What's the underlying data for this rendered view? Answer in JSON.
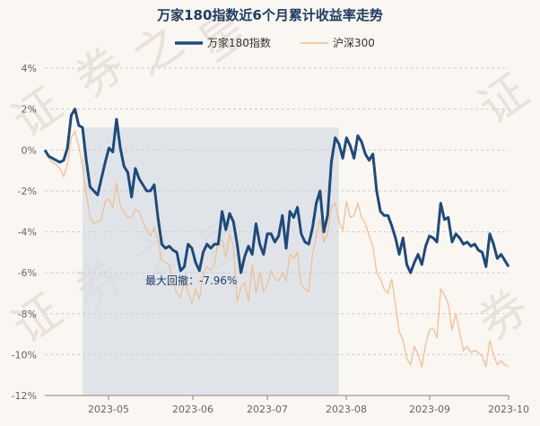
{
  "chart_data": {
    "type": "line",
    "title": "万家180指数近6个月累计收益率走势",
    "xlabel": "",
    "ylabel": "",
    "ylim": [
      -12,
      4
    ],
    "y_ticks": [
      "4%",
      "2%",
      "0%",
      "-2%",
      "-4%",
      "-6%",
      "-8%",
      "-10%",
      "-12%"
    ],
    "x_ticks": [
      "2023-05",
      "2023-06",
      "2023-07",
      "2023-08",
      "2023-09",
      "2023-10"
    ],
    "grid": "horizontal dashed",
    "legend_position": "top-center",
    "drawdown_annotation": "最大回撤：-7.96%",
    "drawdown_range": [
      10,
      78
    ],
    "watermark": [
      "证",
      "券",
      "之",
      "星"
    ],
    "colors": {
      "series1": "#1e4a7b",
      "series2": "#f3bb8e",
      "drawdown_fill": "#d7dee6",
      "grid": "#cccccc"
    },
    "series": [
      {
        "name": "万家180指数",
        "values": [
          0,
          -0.3,
          -0.4,
          -0.5,
          -0.6,
          -0.5,
          0.1,
          1.7,
          2.0,
          1.2,
          1.1,
          -0.5,
          -1.8,
          -2.0,
          -2.2,
          -1.4,
          -0.6,
          0.1,
          -0.1,
          1.5,
          0.1,
          -0.8,
          -1.1,
          -2.3,
          -0.9,
          -1.4,
          -1.7,
          -2.0,
          -2.0,
          -1.7,
          -3.3,
          -4.6,
          -4.8,
          -4.7,
          -4.9,
          -5.0,
          -5.9,
          -5.7,
          -4.6,
          -4.8,
          -5.5,
          -5.9,
          -5.0,
          -4.6,
          -4.8,
          -4.6,
          -4.6,
          -3.0,
          -3.9,
          -3.1,
          -3.5,
          -4.6,
          -6.0,
          -5.2,
          -4.7,
          -5.1,
          -3.6,
          -4.6,
          -5.1,
          -4.1,
          -4.1,
          -4.5,
          -4.2,
          -3.2,
          -4.8,
          -3.0,
          -3.3,
          -2.8,
          -4.1,
          -4.5,
          -4.6,
          -3.8,
          -2.6,
          -2.0,
          -4.0,
          -3.2,
          -0.6,
          0.6,
          0.3,
          -0.4,
          0.6,
          0.2,
          -0.4,
          0.7,
          0.4,
          -0.2,
          -0.5,
          -0.2,
          -2.0,
          -3.0,
          -3.2,
          -3.2,
          -3.7,
          -4.3,
          -5.1,
          -4.3,
          -5.6,
          -6.0,
          -5.5,
          -5.1,
          -5.6,
          -4.7,
          -4.2,
          -4.3,
          -4.5,
          -2.6,
          -3.4,
          -3.3,
          -4.5,
          -4.1,
          -4.3,
          -4.6,
          -4.5,
          -4.7,
          -4.6,
          -4.9,
          -5.0,
          -5.7,
          -4.1,
          -4.6,
          -5.3,
          -5.1,
          -5.4,
          -5.7
        ]
      },
      {
        "name": "沪深300",
        "values": [
          0,
          -0.4,
          -0.6,
          -0.7,
          -0.9,
          -1.3,
          -0.7,
          0.6,
          0.9,
          0.2,
          -0.8,
          -2.1,
          -3.3,
          -3.6,
          -3.5,
          -3.4,
          -2.5,
          -2.4,
          -2.8,
          -1.6,
          -2.7,
          -3.1,
          -3.3,
          -3.3,
          -2.9,
          -3.0,
          -3.5,
          -3.9,
          -4.2,
          -3.8,
          -4.4,
          -5.4,
          -5.5,
          -5.6,
          -6.5,
          -7.0,
          -7.2,
          -6.4,
          -6.9,
          -7.5,
          -6.8,
          -7.3,
          -6.1,
          -5.7,
          -5.9,
          -5.6,
          -4.4,
          -4.4,
          -5.3,
          -4.1,
          -4.7,
          -7.4,
          -6.7,
          -6.5,
          -7.4,
          -5.6,
          -7.0,
          -6.0,
          -6.9,
          -6.6,
          -5.9,
          -6.3,
          -6.4,
          -6.0,
          -6.4,
          -5.1,
          -5.3,
          -5.0,
          -6.6,
          -6.8,
          -6.9,
          -5.1,
          -4.2,
          -3.4,
          -4.5,
          -4.1,
          -2.8,
          -2.6,
          -3.5,
          -3.9,
          -2.5,
          -3.3,
          -3.2,
          -2.6,
          -3.3,
          -3.6,
          -4.2,
          -4.7,
          -6.0,
          -6.3,
          -6.8,
          -7.0,
          -6.3,
          -7.6,
          -8.9,
          -9.3,
          -10.2,
          -10.5,
          -9.6,
          -10.0,
          -10.6,
          -9.5,
          -8.8,
          -8.7,
          -9.2,
          -6.8,
          -7.1,
          -7.5,
          -8.8,
          -8.0,
          -8.9,
          -9.8,
          -9.6,
          -9.9,
          -9.8,
          -9.9,
          -10.1,
          -10.6,
          -9.3,
          -10.0,
          -10.5,
          -10.3,
          -10.5,
          -10.6
        ]
      }
    ]
  }
}
